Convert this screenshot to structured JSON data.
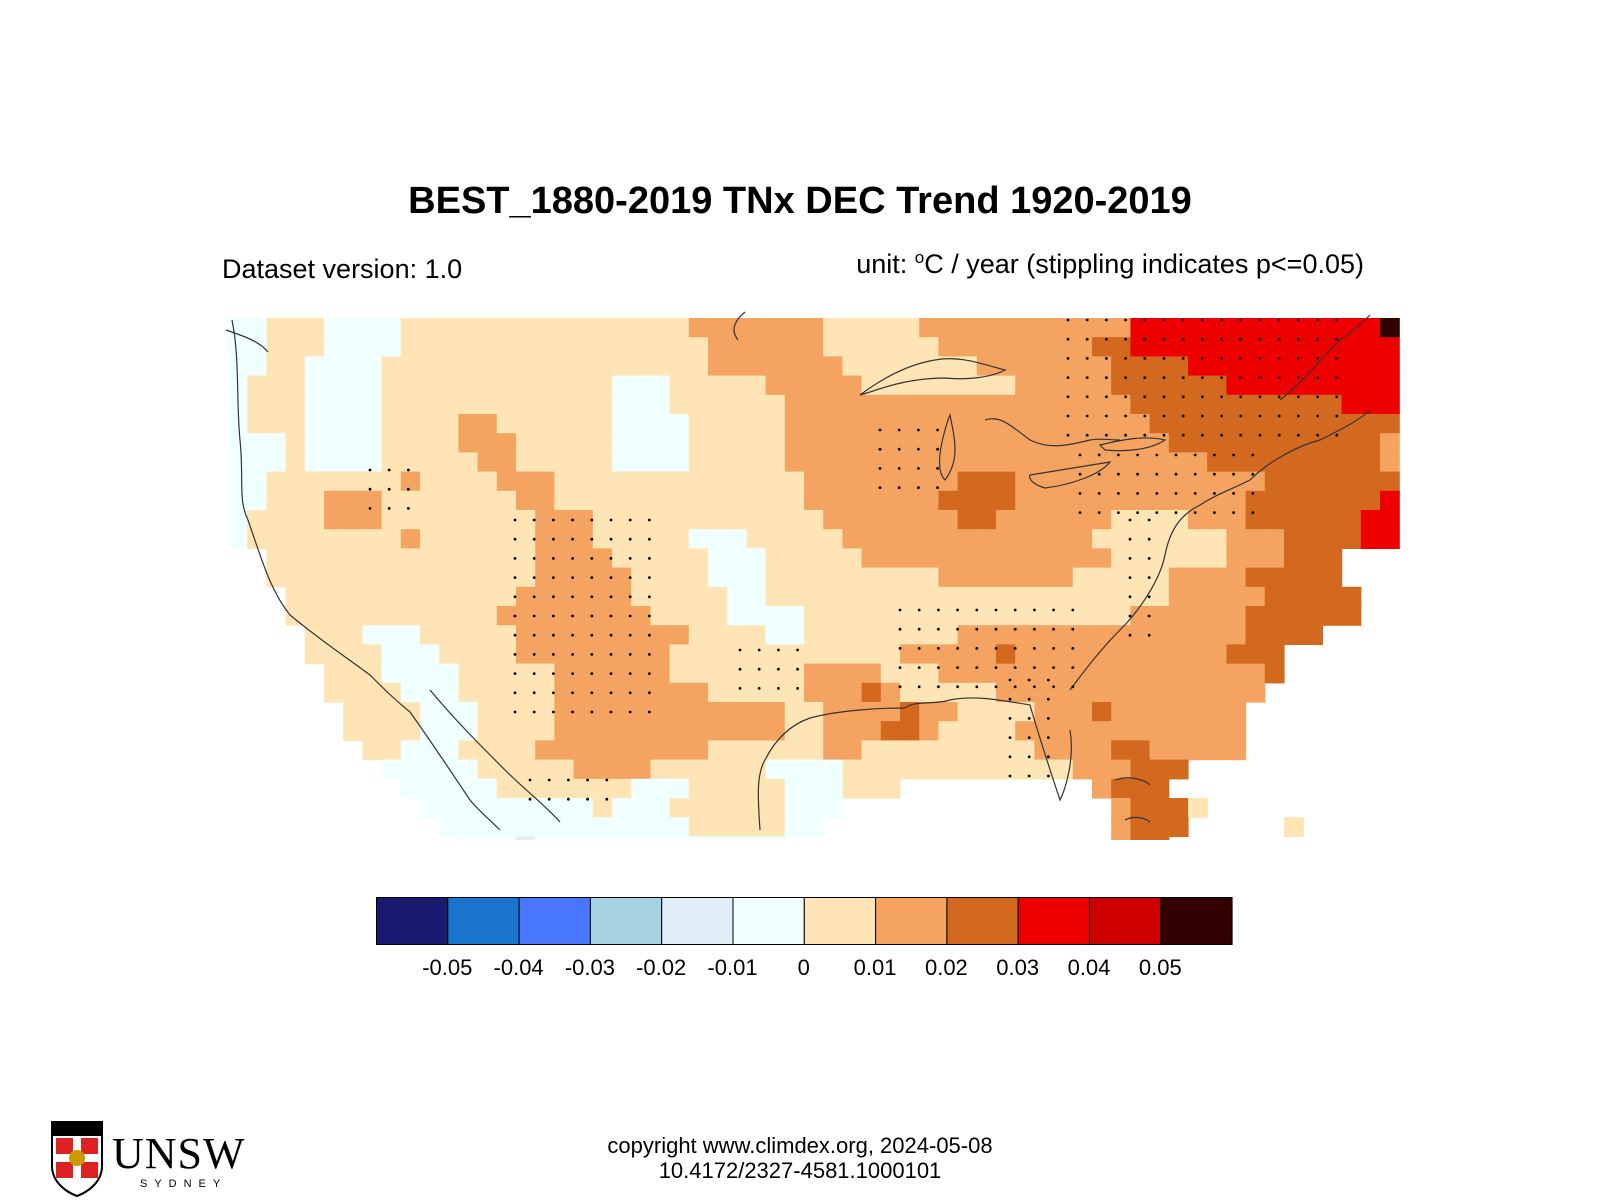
{
  "header": {
    "title": "BEST_1880-2019 TNx DEC Trend 1920-2019",
    "dataset_version": "Dataset version: 1.0",
    "unit_prefix": "unit: ",
    "unit_degree": "o",
    "unit_suffix": "C / year (stippling indicates p<=0.05)"
  },
  "colorbar": {
    "colors": [
      "#191970",
      "#1874cd",
      "#4876ff",
      "#a7d3e5",
      "#e1edf7",
      "#f0ffff",
      "#ffe4b5",
      "#f4a460",
      "#d2691e",
      "#ee0000",
      "#cd0000",
      "#330000"
    ],
    "tick_labels": [
      "-0.05",
      "-0.04",
      "-0.03",
      "-0.02",
      "-0.01",
      "0",
      "0.01",
      "0.02",
      "0.03",
      "0.04",
      "0.05"
    ]
  },
  "map_legend_classes": {
    "0": "#f0ffff",
    "1": "#ffe4b5",
    "2": "#f4a460",
    "3": "#d2691e",
    "4": "#ee0000",
    "5": "#cd0000",
    "6": "#330000",
    "-1": "#e1edf7"
  },
  "footer": {
    "copyright": "copyright www.climdex.org, 2024-05-08",
    "doi": "10.4172/2327-4581.1000101",
    "logo_text": "UNSW",
    "logo_sub": "SYDNEY"
  }
}
